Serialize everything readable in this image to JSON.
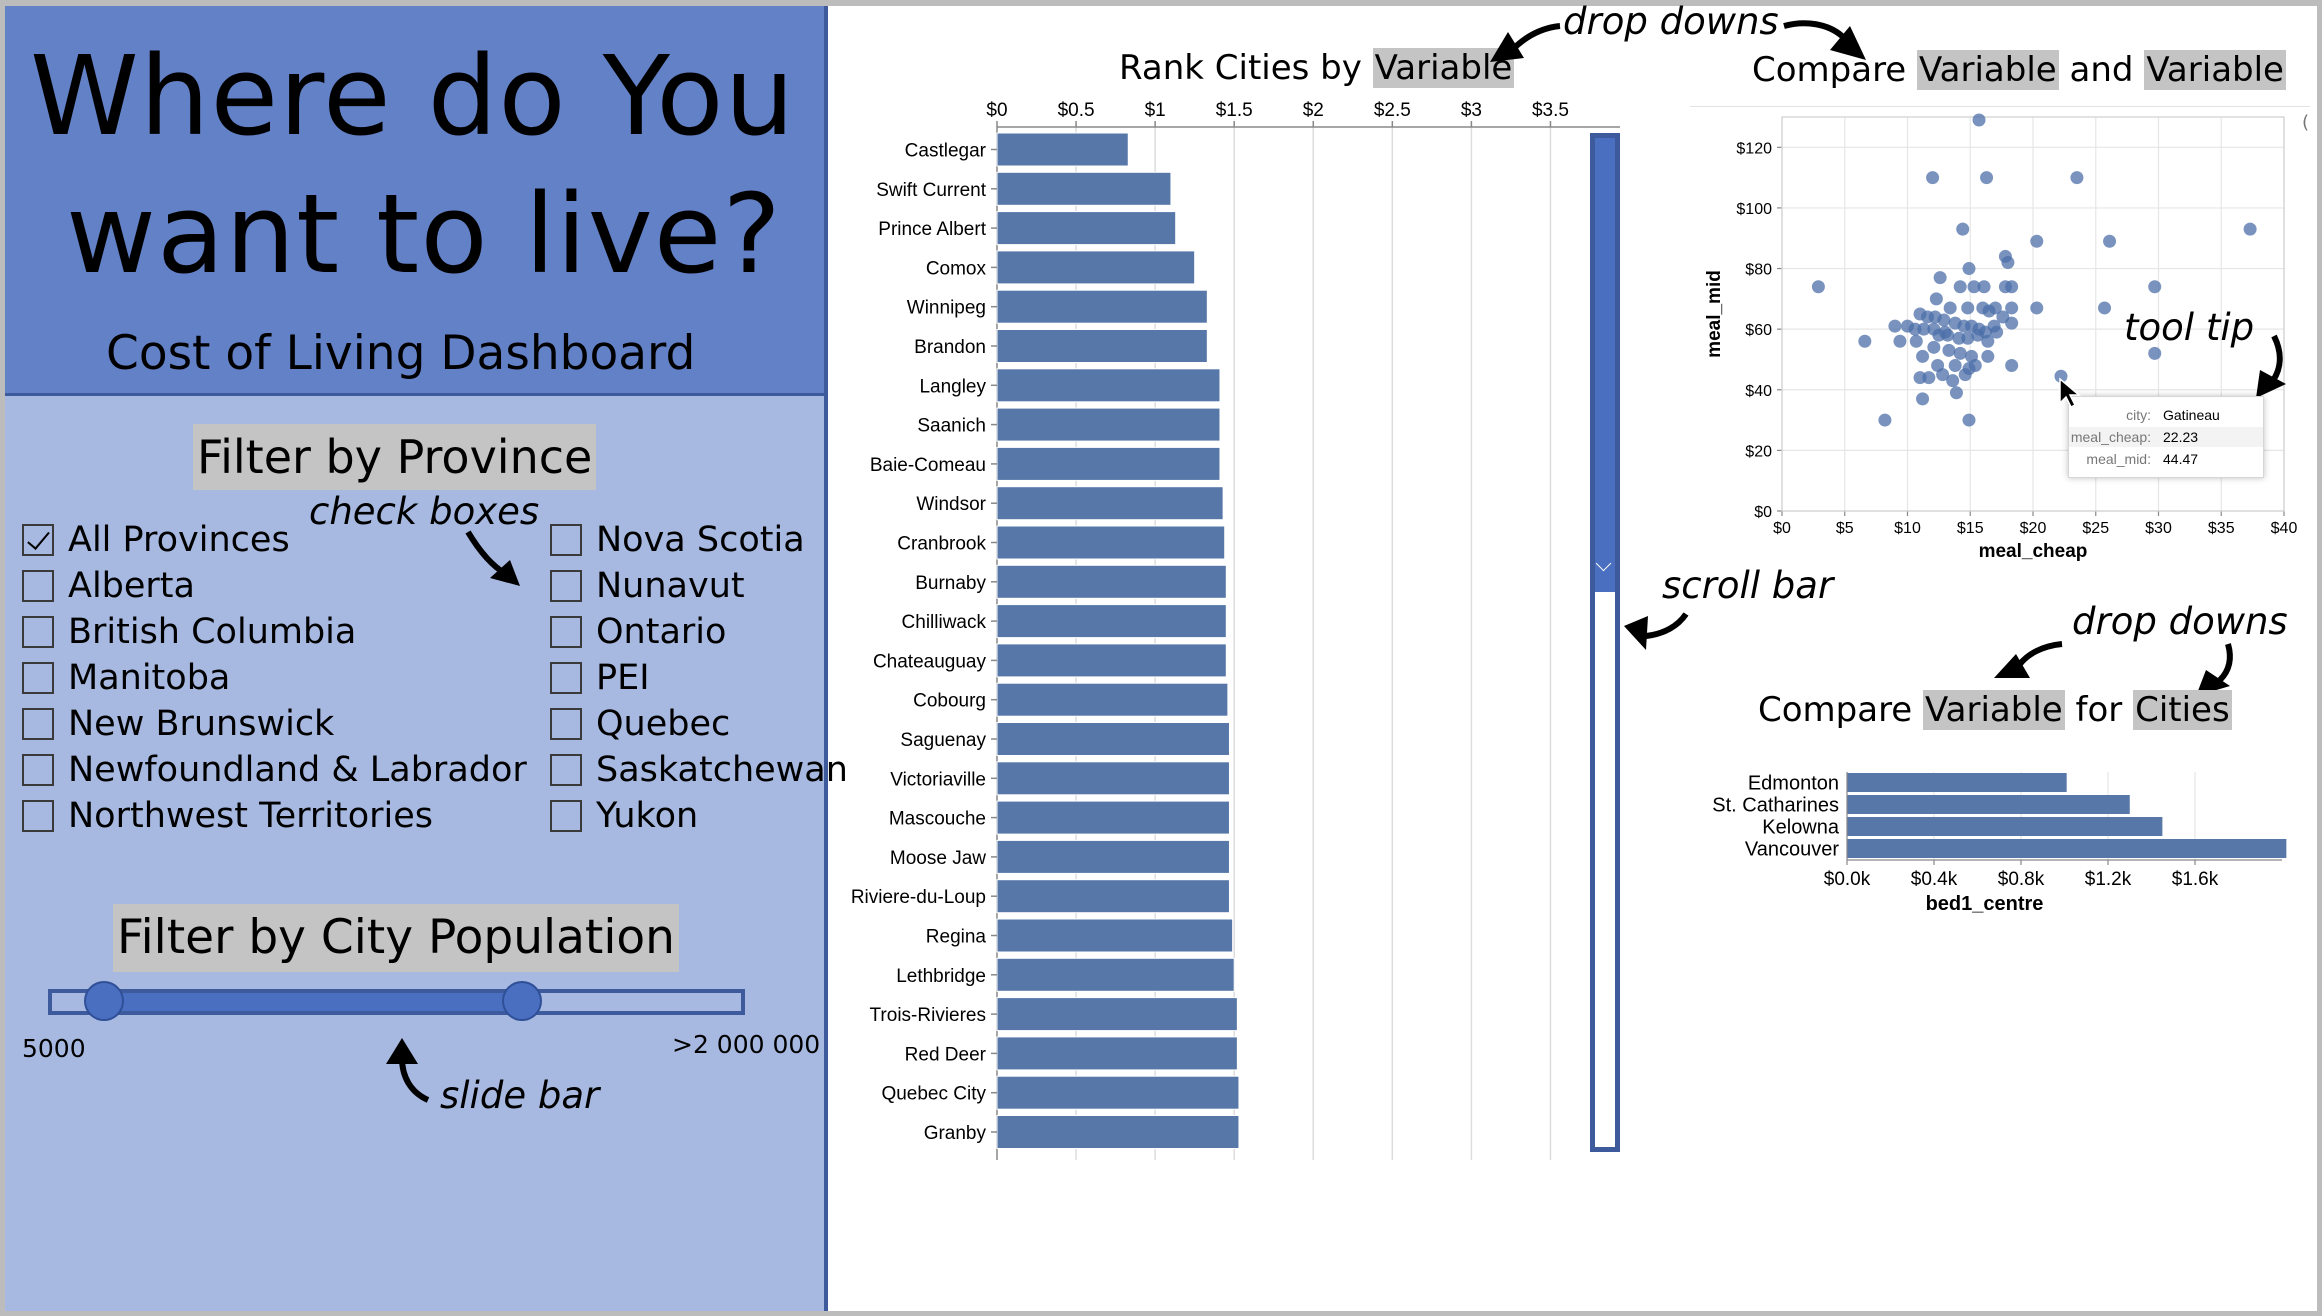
{
  "header": {
    "title_line1": "Where do You",
    "title_line2": "want to live?",
    "subtitle": "Cost of Living Dashboard"
  },
  "province_filter": {
    "title": "Filter by Province",
    "annotation": "check boxes",
    "items": [
      {
        "label": "All Provinces",
        "checked": true
      },
      {
        "label": "Alberta",
        "checked": false
      },
      {
        "label": "British Columbia",
        "checked": false
      },
      {
        "label": "Manitoba",
        "checked": false
      },
      {
        "label": "New Brunswick",
        "checked": false
      },
      {
        "label": "Newfoundland & Labrador",
        "checked": false
      },
      {
        "label": "Northwest Territories",
        "checked": false
      },
      {
        "label": "Nova Scotia",
        "checked": false
      },
      {
        "label": "Nunavut",
        "checked": false
      },
      {
        "label": "Ontario",
        "checked": false
      },
      {
        "label": "PEI",
        "checked": false
      },
      {
        "label": "Quebec",
        "checked": false
      },
      {
        "label": "Saskatchewan",
        "checked": false
      },
      {
        "label": "Yukon",
        "checked": false
      }
    ]
  },
  "population_filter": {
    "title": "Filter by City Population",
    "min_label": "5000",
    "max_label": ">2 000 000",
    "annotation": "slide bar",
    "range": [
      0.08,
      0.68
    ]
  },
  "rank_chart": {
    "title_prefix": "Rank Cities by ",
    "title_dropdown": "Variable",
    "annotation": "drop downs",
    "scroll_annotation": "scroll bar",
    "scroll_position": 0.45
  },
  "scatter_chart": {
    "title_prefix": "Compare ",
    "dropdown1": "Variable",
    "title_mid": " and ",
    "dropdown2": "Variable",
    "annotation": "tool tip",
    "tooltip": {
      "rows": [
        {
          "key": "city:",
          "value": "Gatineau"
        },
        {
          "key": "meal_cheap:",
          "value": "22.23"
        },
        {
          "key": "meal_mid:",
          "value": "44.47"
        }
      ]
    }
  },
  "compare_chart": {
    "title_prefix": "Compare ",
    "dropdown1": "Variable",
    "title_mid": " for ",
    "dropdown2": "Cities",
    "annotation": "drop downs"
  },
  "colors": {
    "bar": "#5677a8",
    "point": "#4c6fa8",
    "header_bg": "#6381c7",
    "panel_bg": "#a7b9e1",
    "border": "#3c5a9c"
  },
  "chart_data": [
    {
      "type": "bar",
      "orientation": "horizontal",
      "categories": [
        "Castlegar",
        "Swift Current",
        "Prince Albert",
        "Comox",
        "Winnipeg",
        "Brandon",
        "Langley",
        "Saanich",
        "Baie-Comeau",
        "Windsor",
        "Cranbrook",
        "Burnaby",
        "Chilliwack",
        "Chateauguay",
        "Cobourg",
        "Saguenay",
        "Victoriaville",
        "Mascouche",
        "Moose Jaw",
        "Riviere-du-Loup",
        "Regina",
        "Lethbridge",
        "Trois-Rivieres",
        "Red Deer",
        "Quebec City",
        "Granby"
      ],
      "values": [
        0.83,
        1.1,
        1.13,
        1.25,
        1.33,
        1.33,
        1.41,
        1.41,
        1.41,
        1.43,
        1.44,
        1.45,
        1.45,
        1.45,
        1.46,
        1.47,
        1.47,
        1.47,
        1.47,
        1.47,
        1.49,
        1.5,
        1.52,
        1.52,
        1.53,
        1.53
      ],
      "ticks": [
        "$0",
        "$0.5",
        "$1",
        "$1.5",
        "$2",
        "$2.5",
        "$3",
        "$3.5"
      ],
      "xlim": [
        0,
        3.75
      ],
      "grid": true
    },
    {
      "type": "scatter",
      "xlabel": "meal_cheap",
      "ylabel": "meal_mid",
      "xticks": [
        "$0",
        "$5",
        "$10",
        "$15",
        "$20",
        "$25",
        "$30",
        "$35",
        "$40"
      ],
      "yticks": [
        "$0",
        "$20",
        "$40",
        "$60",
        "$80",
        "$100",
        "$120"
      ],
      "xlim": [
        0,
        40
      ],
      "ylim": [
        0,
        130
      ],
      "grid": true,
      "points": [
        [
          15.7,
          129
        ],
        [
          12,
          110
        ],
        [
          16.3,
          110
        ],
        [
          23.5,
          110
        ],
        [
          14.4,
          93
        ],
        [
          20.3,
          89
        ],
        [
          26.1,
          89
        ],
        [
          37.3,
          93
        ],
        [
          17.8,
          84
        ],
        [
          18,
          82
        ],
        [
          14.9,
          80
        ],
        [
          2.9,
          74
        ],
        [
          9.4,
          56
        ],
        [
          12.6,
          77
        ],
        [
          14.2,
          74
        ],
        [
          15.3,
          74
        ],
        [
          16.1,
          74
        ],
        [
          17.8,
          74
        ],
        [
          18.3,
          74
        ],
        [
          29.7,
          74
        ],
        [
          12.3,
          70
        ],
        [
          13.4,
          67
        ],
        [
          14.8,
          67
        ],
        [
          16,
          67
        ],
        [
          17,
          67
        ],
        [
          18.3,
          67
        ],
        [
          20.3,
          67
        ],
        [
          25.7,
          67
        ],
        [
          11,
          65
        ],
        [
          11.6,
          64
        ],
        [
          12.2,
          64
        ],
        [
          12.9,
          63
        ],
        [
          13.8,
          62
        ],
        [
          14.5,
          61
        ],
        [
          15.1,
          61
        ],
        [
          15.7,
          60
        ],
        [
          16.2,
          59
        ],
        [
          17.1,
          59
        ],
        [
          18.3,
          62
        ],
        [
          10,
          61
        ],
        [
          10.6,
          60
        ],
        [
          11.3,
          60
        ],
        [
          12.5,
          58
        ],
        [
          13.2,
          58
        ],
        [
          14.1,
          57
        ],
        [
          14.8,
          57
        ],
        [
          15.6,
          58
        ],
        [
          16.4,
          56
        ],
        [
          9,
          61
        ],
        [
          6.6,
          56
        ],
        [
          10.7,
          56
        ],
        [
          12.1,
          54
        ],
        [
          13.3,
          53
        ],
        [
          14.2,
          52
        ],
        [
          15.1,
          51
        ],
        [
          16.4,
          51
        ],
        [
          11.2,
          51
        ],
        [
          12.4,
          48
        ],
        [
          13.8,
          48
        ],
        [
          14.9,
          47
        ],
        [
          18.3,
          48
        ],
        [
          29.7,
          52
        ],
        [
          11,
          44
        ],
        [
          11.7,
          44
        ],
        [
          14.6,
          45
        ],
        [
          13.6,
          43
        ],
        [
          22.23,
          44.47
        ],
        [
          11.2,
          37
        ],
        [
          13.9,
          39
        ],
        [
          8.2,
          30
        ],
        [
          14.9,
          30
        ],
        [
          12.8,
          45
        ],
        [
          15.4,
          48
        ],
        [
          16.9,
          61
        ],
        [
          17.6,
          64
        ],
        [
          12.1,
          60
        ],
        [
          16.5,
          66
        ],
        [
          13,
          59
        ]
      ]
    },
    {
      "type": "bar",
      "orientation": "horizontal",
      "xlabel": "bed1_centre",
      "categories": [
        "Edmonton",
        "St. Catharines",
        "Kelowna",
        "Vancouver"
      ],
      "values": [
        1010,
        1300,
        1450,
        2020
      ],
      "xticks": [
        "$0.0k",
        "$0.4k",
        "$0.8k",
        "$1.2k",
        "$1.6k"
      ],
      "xlim": [
        0,
        2000
      ]
    }
  ]
}
